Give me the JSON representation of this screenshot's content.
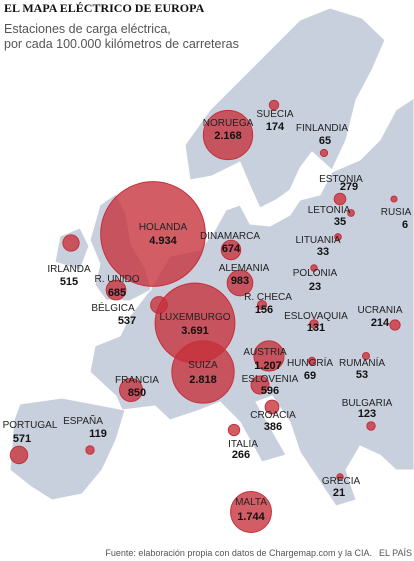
{
  "header": {
    "title": "EL MAPA ELÉCTRICO DE EUROPA",
    "subtitle": [
      "Estaciones de carga eléctrica,",
      "por cada 100.000 kilómetros de carreteras"
    ]
  },
  "map": {
    "type": "bubble",
    "color": "#c62f3a",
    "countries": [
      {
        "name": "NORUEGA",
        "value": 2168,
        "value_label": "2.168"
      },
      {
        "name": "SUECIA",
        "value": 174,
        "value_label": "174"
      },
      {
        "name": "FINLANDIA",
        "value": 65,
        "value_label": "65"
      },
      {
        "name": "ESTONIA",
        "value": 279,
        "value_label": "279"
      },
      {
        "name": "LETONIA",
        "value": 35,
        "value_label": "35"
      },
      {
        "name": "RUSIA",
        "value": 6,
        "value_label": "6"
      },
      {
        "name": "LITUANIA",
        "value": 33,
        "value_label": "33"
      },
      {
        "name": "HOLANDA",
        "value": 4934,
        "value_label": "4.934"
      },
      {
        "name": "DINAMARCA",
        "value": 674,
        "value_label": "674"
      },
      {
        "name": "IRLANDA",
        "value": 515,
        "value_label": "515"
      },
      {
        "name": "R. UNIDO",
        "value": 685,
        "value_label": "685"
      },
      {
        "name": "ALEMANIA",
        "value": 983,
        "value_label": "983"
      },
      {
        "name": "POLONIA",
        "value": 23,
        "value_label": "23"
      },
      {
        "name": "BÉLGICA",
        "value": 537,
        "value_label": "537"
      },
      {
        "name": "LUXEMBURGO",
        "value": 3691,
        "value_label": "3.691"
      },
      {
        "name": "R. CHECA",
        "value": 156,
        "value_label": "156"
      },
      {
        "name": "ESLOVAQUIA",
        "value": 131,
        "value_label": "131"
      },
      {
        "name": "UCRANIA",
        "value": 214,
        "value_label": "214"
      },
      {
        "name": "AUSTRIA",
        "value": 1207,
        "value_label": "1.207"
      },
      {
        "name": "HUNGRÍA",
        "value": 69,
        "value_label": "69"
      },
      {
        "name": "RUMANÍA",
        "value": 53,
        "value_label": "53"
      },
      {
        "name": "SUIZA",
        "value": 2818,
        "value_label": "2.818"
      },
      {
        "name": "ESLOVENIA",
        "value": 596,
        "value_label": "596"
      },
      {
        "name": "FRANCIA",
        "value": 850,
        "value_label": "850"
      },
      {
        "name": "CROACIA",
        "value": 386,
        "value_label": "386"
      },
      {
        "name": "BULGARIA",
        "value": 123,
        "value_label": "123"
      },
      {
        "name": "PORTUGAL",
        "value": 571,
        "value_label": "571"
      },
      {
        "name": "ESPAÑA",
        "value": 119,
        "value_label": "119"
      },
      {
        "name": "ITALIA",
        "value": 266,
        "value_label": "266"
      },
      {
        "name": "GRECIA",
        "value": 21,
        "value_label": "21"
      },
      {
        "name": "MALTA",
        "value": 1744,
        "value_label": "1.744"
      }
    ]
  },
  "footer": {
    "source": "Fuente: elaboración propia con datos de Chargemap.com y la CIA.",
    "brand": "EL PAÍS"
  }
}
